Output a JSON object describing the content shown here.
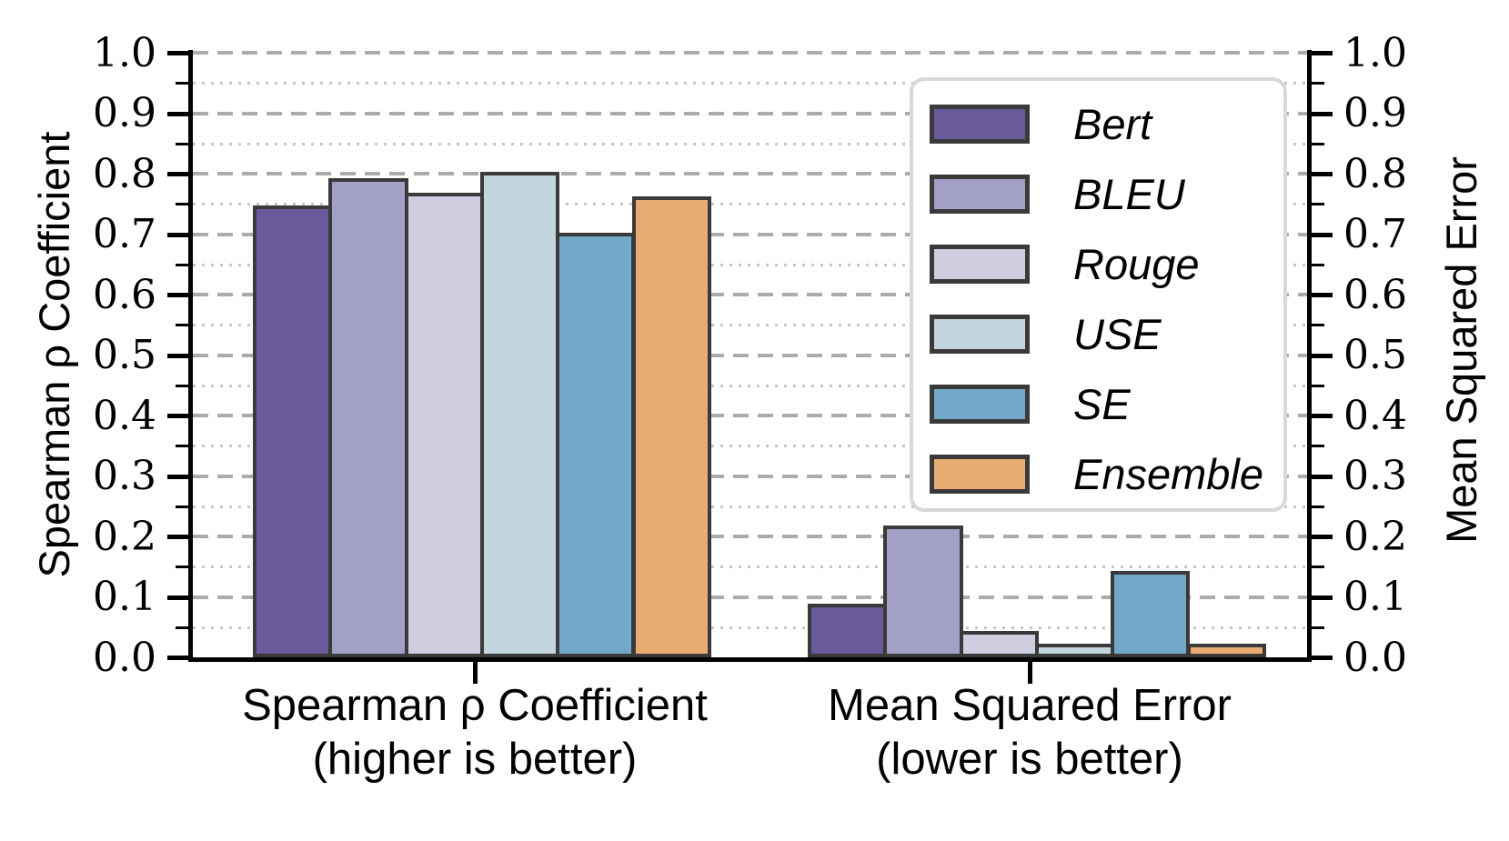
{
  "chart_data": {
    "type": "bar",
    "grid": {
      "major_style": "dashed",
      "minor_style": "dotted",
      "major_color": "#ababab",
      "minor_color": "#c6c6c6"
    },
    "background_color": "#ffffff",
    "bar_edge_color": "#3a3a3a",
    "legend": {
      "position": "upper right",
      "border_color": "#d8d8d8"
    },
    "groups": [
      {
        "line1": "Spearman ρ Coefficient",
        "line2": "(higher is better)"
      },
      {
        "line1": "Mean Squared Error",
        "line2": "(lower is better)"
      }
    ],
    "series": [
      {
        "name": "Bert",
        "color": "#6a5a9b",
        "values": [
          0.745,
          0.085
        ]
      },
      {
        "name": "BLEU",
        "color": "#a3a0c5",
        "values": [
          0.79,
          0.215
        ]
      },
      {
        "name": "Rouge",
        "color": "#cfcde0",
        "values": [
          0.765,
          0.04
        ]
      },
      {
        "name": "USE",
        "color": "#c3d6e0",
        "values": [
          0.8,
          0.02
        ]
      },
      {
        "name": "SE",
        "color": "#74a8c8",
        "values": [
          0.7,
          0.14
        ]
      },
      {
        "name": "Ensemble",
        "color": "#e8ab72",
        "values": [
          0.76,
          0.02
        ]
      }
    ],
    "left_axis": {
      "label": "Spearman ρ Coefficient",
      "min": 0.0,
      "max": 1.0,
      "major_step": 0.1,
      "minor_step": 0.05,
      "tick_labels": [
        "0.0",
        "0.1",
        "0.2",
        "0.3",
        "0.4",
        "0.5",
        "0.6",
        "0.7",
        "0.8",
        "0.9",
        "1.0"
      ]
    },
    "right_axis": {
      "label": "Mean Squared Error",
      "min": 0.0,
      "max": 1.0,
      "major_step": 0.1,
      "minor_step": 0.05,
      "tick_labels": [
        "0.0",
        "0.1",
        "0.2",
        "0.3",
        "0.4",
        "0.5",
        "0.6",
        "0.7",
        "0.8",
        "0.9",
        "1.0"
      ]
    }
  }
}
